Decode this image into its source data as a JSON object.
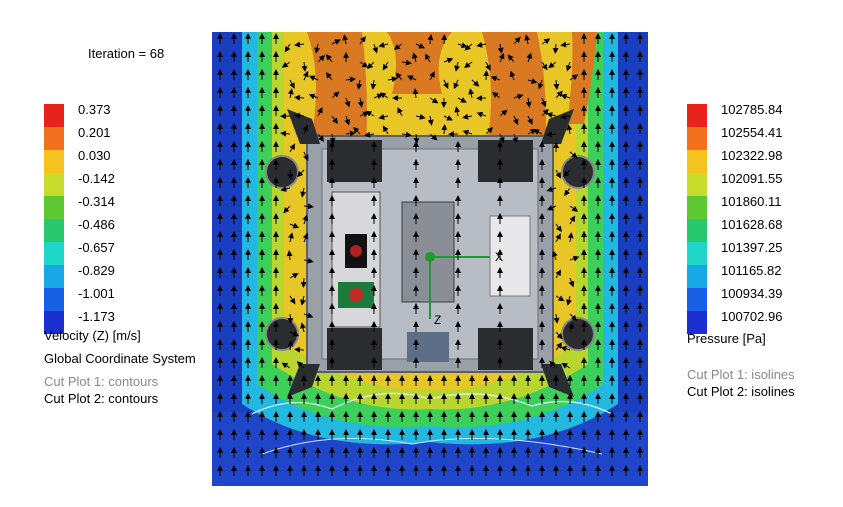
{
  "iteration_text": "Iteration = 68",
  "velocity_legend": {
    "ticks": [
      "0.373",
      "0.201",
      "0.030",
      "-0.142",
      "-0.314",
      "-0.486",
      "-0.657",
      "-0.829",
      "-1.001",
      "-1.173"
    ],
    "colors": [
      "#e8231c",
      "#f2711c",
      "#f6c21e",
      "#c8dc2c",
      "#5ec832",
      "#27c86e",
      "#1fd7c9",
      "#18a8e8",
      "#1760e6",
      "#1a2fd0"
    ],
    "title": "Velocity (Z) [m/s]",
    "coord_system": "Global Coordinate System"
  },
  "pressure_legend": {
    "ticks": [
      "102785.84",
      "102554.41",
      "102322.98",
      "102091.55",
      "101860.11",
      "101628.68",
      "101397.25",
      "101165.82",
      "100934.39",
      "100702.96"
    ],
    "colors": [
      "#e8231c",
      "#f2711c",
      "#f6c21e",
      "#c8dc2c",
      "#5ec832",
      "#27c86e",
      "#1fd7c9",
      "#18a8e8",
      "#1760e6",
      "#1a2fd0"
    ],
    "title": "Pressure [Pa]"
  },
  "left_cut_plots": [
    "Cut Plot 1: contours",
    "Cut Plot 2: contours"
  ],
  "right_cut_plots": [
    "Cut Plot 1: isolines",
    "Cut Plot 2: isolines"
  ],
  "axes": {
    "x": "X",
    "z": "Z"
  }
}
